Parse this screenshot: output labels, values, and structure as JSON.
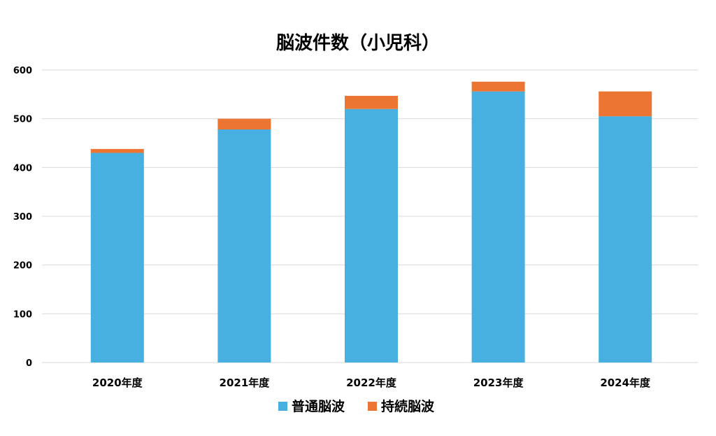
{
  "chart_data": {
    "type": "bar",
    "stacked": true,
    "title": "脳波件数（小児科）",
    "xlabel": "",
    "ylabel": "",
    "categories": [
      "2020年度",
      "2021年度",
      "2022年度",
      "2023年度",
      "2024年度"
    ],
    "series": [
      {
        "name": "普通脳波",
        "color": "#47b0e0",
        "values": [
          430,
          478,
          520,
          556,
          505
        ]
      },
      {
        "name": "持続脳波",
        "color": "#ec7534",
        "values": [
          8,
          22,
          27,
          20,
          51
        ]
      }
    ],
    "ylim": [
      0,
      600
    ],
    "yticks": [
      "0",
      "100",
      "200",
      "300",
      "400",
      "500",
      "600"
    ],
    "grid": true,
    "legend_position": "bottom"
  }
}
